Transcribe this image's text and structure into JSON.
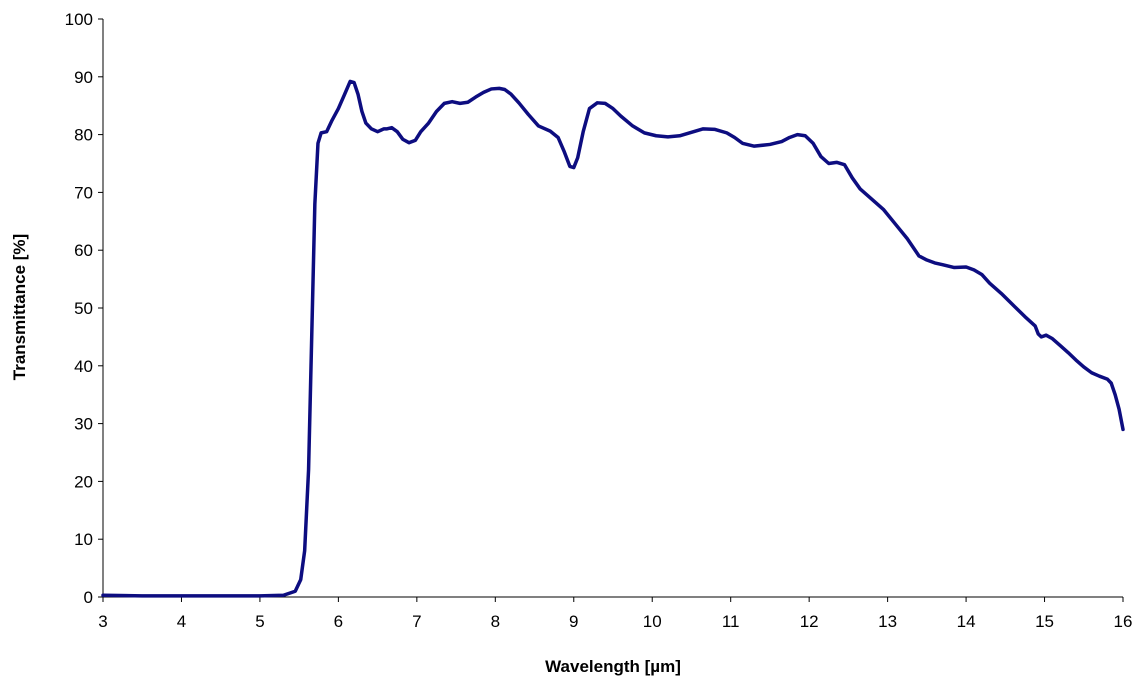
{
  "chart_data": {
    "type": "line",
    "title": "",
    "xlabel": "Wavelength [µm]",
    "ylabel": "Transmittance [%]",
    "xlim": [
      3,
      16
    ],
    "ylim": [
      0,
      100
    ],
    "x_ticks": [
      3,
      4,
      5,
      6,
      7,
      8,
      9,
      10,
      11,
      12,
      13,
      14,
      15,
      16
    ],
    "y_ticks": [
      0,
      10,
      20,
      30,
      40,
      50,
      60,
      70,
      80,
      90,
      100
    ],
    "grid": false,
    "legend": "none",
    "line_color": "#0d0d80",
    "series": [
      {
        "x": [
          3.0,
          3.5,
          4.0,
          4.5,
          5.0,
          5.3,
          5.45,
          5.52,
          5.57,
          5.62,
          5.66,
          5.7,
          5.74,
          5.78,
          5.85,
          5.92,
          6.0,
          6.08,
          6.15,
          6.2,
          6.25,
          6.3,
          6.35,
          6.42,
          6.5,
          6.58,
          6.62,
          6.68,
          6.75,
          6.82,
          6.9,
          6.98,
          7.05,
          7.15,
          7.25,
          7.35,
          7.45,
          7.55,
          7.65,
          7.75,
          7.85,
          7.95,
          8.05,
          8.12,
          8.2,
          8.3,
          8.42,
          8.55,
          8.7,
          8.8,
          8.88,
          8.95,
          9.0,
          9.05,
          9.12,
          9.2,
          9.3,
          9.4,
          9.5,
          9.6,
          9.75,
          9.9,
          10.05,
          10.2,
          10.35,
          10.5,
          10.65,
          10.8,
          10.95,
          11.05,
          11.15,
          11.3,
          11.5,
          11.65,
          11.75,
          11.85,
          11.95,
          12.05,
          12.15,
          12.25,
          12.35,
          12.45,
          12.55,
          12.65,
          12.8,
          12.95,
          13.1,
          13.25,
          13.4,
          13.5,
          13.6,
          13.7,
          13.85,
          14.0,
          14.1,
          14.2,
          14.3,
          14.45,
          14.6,
          14.75,
          14.88,
          14.92,
          14.96,
          15.02,
          15.1,
          15.2,
          15.3,
          15.4,
          15.5,
          15.6,
          15.7,
          15.8,
          15.85,
          15.9,
          15.95,
          16.0
        ],
        "y": [
          0.3,
          0.2,
          0.2,
          0.2,
          0.2,
          0.3,
          1.0,
          3.0,
          8.0,
          22.0,
          45.0,
          68.0,
          78.5,
          80.3,
          80.5,
          82.5,
          84.5,
          87.0,
          89.2,
          89.0,
          87.0,
          84.0,
          82.0,
          81.0,
          80.5,
          81.0,
          81.0,
          81.2,
          80.5,
          79.2,
          78.6,
          79.0,
          80.5,
          82.0,
          84.0,
          85.4,
          85.7,
          85.4,
          85.6,
          86.5,
          87.3,
          87.9,
          88.0,
          87.8,
          87.0,
          85.5,
          83.5,
          81.5,
          80.6,
          79.5,
          77.0,
          74.5,
          74.3,
          76.0,
          80.5,
          84.5,
          85.5,
          85.4,
          84.5,
          83.2,
          81.5,
          80.3,
          79.8,
          79.6,
          79.8,
          80.4,
          81.0,
          80.9,
          80.3,
          79.5,
          78.5,
          78.0,
          78.3,
          78.8,
          79.5,
          80.0,
          79.8,
          78.5,
          76.2,
          75.0,
          75.2,
          74.8,
          72.5,
          70.6,
          68.8,
          67.0,
          64.5,
          62.0,
          59.0,
          58.3,
          57.8,
          57.5,
          57.0,
          57.1,
          56.6,
          55.8,
          54.3,
          52.5,
          50.5,
          48.5,
          46.9,
          45.5,
          45.0,
          45.3,
          44.7,
          43.5,
          42.3,
          41.0,
          39.8,
          38.8,
          38.2,
          37.7,
          37.0,
          35.0,
          32.5,
          29.0
        ]
      }
    ]
  }
}
